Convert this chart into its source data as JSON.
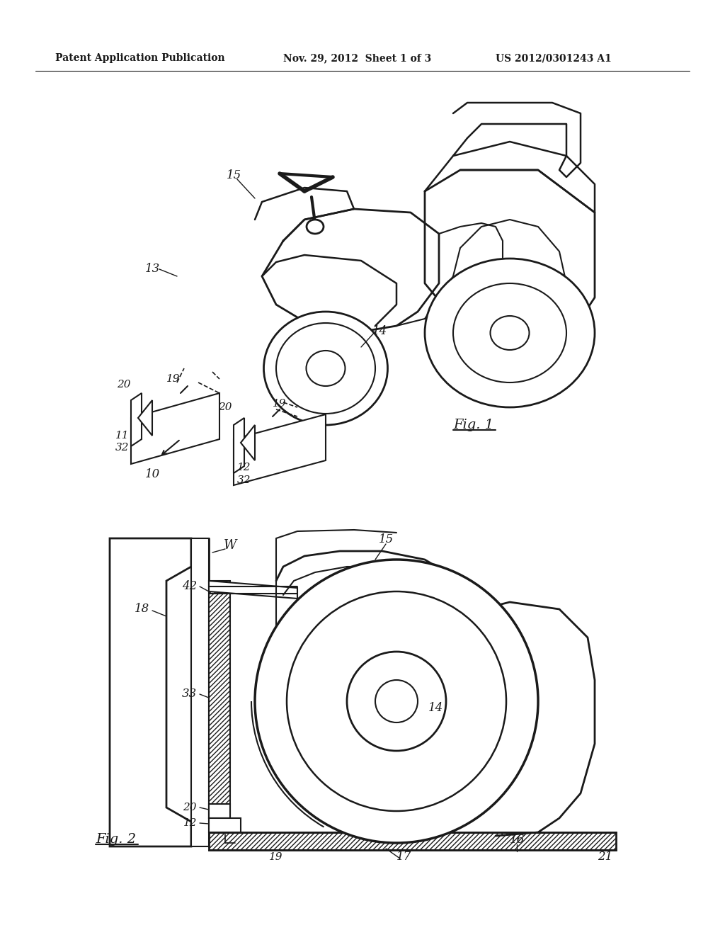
{
  "header_left": "Patent Application Publication",
  "header_mid": "Nov. 29, 2012  Sheet 1 of 3",
  "header_right": "US 2012/0301243 A1",
  "bg_color": "#ffffff",
  "line_color": "#1a1a1a"
}
